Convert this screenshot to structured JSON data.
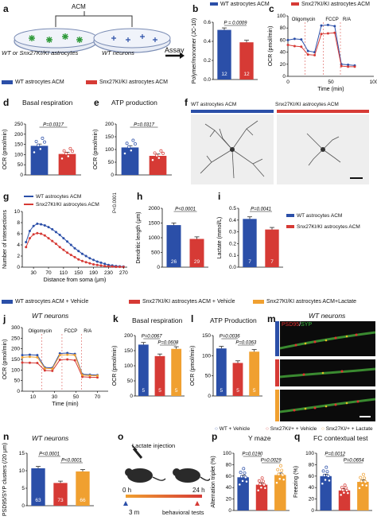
{
  "colors": {
    "blue": "#2b4fa8",
    "red": "#d63a35",
    "orange": "#f0a030",
    "green": "#2f9a3a",
    "micro_bg": "#0b0b0b",
    "gray_bg": "#ececec"
  },
  "legend": {
    "wt_acm": "WT astrocytes ACM",
    "ki_acm": "Snx27KI/KI astrocytes ACM",
    "wt_vehicle": "WT astrocytes ACM + Vehicle",
    "ki_vehicle": "Snx27KI/KI astrocytes ACM + Vehicle",
    "ki_lactate": "Snx27KI/KI astrocytes ACM+Lactate",
    "wt_veh_mice": "WT + Vehicle",
    "ki_veh_mice": "Snx27KI/+ + Vehicle",
    "ki_lac_mice": "Snx27KI/+ + Lactate"
  },
  "panels": {
    "a": {
      "letter": "a",
      "acm": "ACM",
      "left_label": "WT or Snx27KI/KI astrocytes",
      "right_label": "WT neurons",
      "assay": "Assay"
    },
    "b": {
      "letter": "b",
      "ylabel": "Polymer/monomer (JC-10)",
      "pvalue": "P = 0.0009"
    },
    "c": {
      "letter": "c",
      "ylabel": "OCR (pmol/min)",
      "xlabel": "Time (min)",
      "drugs": [
        "Oligomycin",
        "FCCP",
        "R/A"
      ]
    },
    "d": {
      "letter": "d",
      "title": "Basal respiration",
      "ylabel": "OCR (pmol/min)",
      "pvalue": "P=0.0317"
    },
    "e": {
      "letter": "e",
      "title": "ATP production",
      "ylabel": "OCR (pmol/min)",
      "pvalue": "P=0.0317"
    },
    "f": {
      "letter": "f"
    },
    "g": {
      "letter": "g",
      "ylabel": "Number of intersections",
      "xlabel": "Distance from soma (μm)",
      "pvalue": "P<0.0001"
    },
    "h": {
      "letter": "h",
      "ylabel": "Dendritic length (μm)",
      "pvalue": "P<0.0001"
    },
    "i": {
      "letter": "i",
      "ylabel": "Lactate (mmol/L)",
      "pvalue": "P=0.0041"
    },
    "j": {
      "letter": "j",
      "title": "WT neurons",
      "ylabel": "OCR (pmol/min)",
      "xlabel": "Time (min)",
      "drugs": [
        "Oligomycin",
        "FCCP",
        "R/A"
      ]
    },
    "k": {
      "letter": "k",
      "title": "Basal respiration",
      "ylabel": "OCR (pmol/min)",
      "p1": "P=0.0067",
      "p2": "P=0.0608"
    },
    "l": {
      "letter": "l",
      "title": "ATP Production",
      "ylabel": "OCR (pmol/min)",
      "p1": "P=0.0036",
      "p2": "P=0.0363"
    },
    "m": {
      "letter": "m",
      "title": "WT neurons",
      "stain1": "PSD95",
      "stain2": "SYP"
    },
    "n": {
      "letter": "n",
      "title": "WT neurons",
      "ylabel": "PSD95/SYP clusters (/20 μm)",
      "p1": "P<0.0001",
      "p2": "P<0.0001"
    },
    "o": {
      "letter": "o",
      "inject": "Lactate injection",
      "t0": "0 h",
      "t24": "24 h",
      "age": "3 m",
      "tests": "behavioral tests"
    },
    "p": {
      "letter": "p",
      "title": "Y maze",
      "ylabel": "Alternation triplet (%)",
      "p1": "P=0.0190",
      "p2": "P=0.0029"
    },
    "q": {
      "letter": "q",
      "title": "FC contextual test",
      "ylabel": "Freezing (%)",
      "p1": "P=0.0012",
      "p2": "P=0.0654"
    }
  },
  "chart_data": [
    {
      "id": "b",
      "type": "bar",
      "categories": [
        "WT astrocytes ACM",
        "Snx27KI/KI astrocytes ACM"
      ],
      "values": [
        0.52,
        0.39
      ],
      "n": [
        "12",
        "12"
      ],
      "ylim": [
        0,
        0.6
      ],
      "yticks": [
        "0.0",
        "0.2",
        "0.4",
        "0.6"
      ]
    },
    {
      "id": "c",
      "type": "line",
      "x": [
        0,
        7,
        14,
        21,
        28,
        35,
        42,
        49,
        56,
        63,
        70
      ],
      "series": [
        {
          "name": "WT astrocytes ACM",
          "values": [
            60,
            62,
            61,
            42,
            40,
            84,
            85,
            83,
            20,
            19,
            18
          ]
        },
        {
          "name": "Snx27KI/KI astrocytes ACM",
          "values": [
            52,
            50,
            49,
            36,
            35,
            70,
            71,
            72,
            17,
            16,
            16
          ]
        }
      ],
      "xlim": [
        0,
        90
      ],
      "xticks": [
        "0",
        "50",
        "100"
      ],
      "ylim": [
        0,
        100
      ],
      "yticks": [
        "0",
        "20",
        "40",
        "60",
        "80",
        "100"
      ]
    },
    {
      "id": "d",
      "type": "bar",
      "categories": [
        "WT",
        "KI/KI"
      ],
      "values": [
        143,
        103
      ],
      "ylim": [
        0,
        250
      ],
      "yticks": [
        "0",
        "50",
        "100",
        "150",
        "200",
        "250"
      ]
    },
    {
      "id": "e",
      "type": "bar",
      "categories": [
        "WT",
        "KI/KI"
      ],
      "values": [
        108,
        75
      ],
      "ylim": [
        0,
        200
      ],
      "yticks": [
        "0",
        "50",
        "100",
        "150",
        "200"
      ]
    },
    {
      "id": "g",
      "type": "line",
      "x": [
        10,
        20,
        30,
        40,
        50,
        60,
        70,
        80,
        90,
        100,
        110,
        120,
        130,
        140,
        150,
        160,
        170,
        180,
        190,
        200,
        210,
        220,
        230,
        240,
        250,
        260,
        270
      ],
      "series": [
        {
          "name": "WT astrocytes ACM",
          "values": [
            4.5,
            6.5,
            7.4,
            7.8,
            7.7,
            7.5,
            7.2,
            6.8,
            6.3,
            5.8,
            5.2,
            4.6,
            4.0,
            3.4,
            2.9,
            2.4,
            2.0,
            1.6,
            1.3,
            1.0,
            0.8,
            0.6,
            0.4,
            0.3,
            0.2,
            0.15,
            0.1
          ]
        },
        {
          "name": "Snx27KI/KI astrocytes ACM",
          "values": [
            3.6,
            5.2,
            5.9,
            6.1,
            6.0,
            5.7,
            5.2,
            4.7,
            4.2,
            3.6,
            3.1,
            2.6,
            2.2,
            1.8,
            1.4,
            1.1,
            0.9,
            0.7,
            0.5,
            0.4,
            0.3,
            0.2,
            0.15,
            0.1,
            0.05,
            0.05,
            0.03
          ]
        }
      ],
      "xticks": [
        "30",
        "70",
        "110",
        "150",
        "190",
        "230",
        "270"
      ],
      "ylim": [
        0,
        10
      ],
      "yticks": [
        "0",
        "2",
        "4",
        "6",
        "8",
        "10"
      ]
    },
    {
      "id": "h",
      "type": "bar",
      "categories": [
        "WT",
        "KI/KI"
      ],
      "values": [
        1430,
        960
      ],
      "n": [
        "26",
        "29"
      ],
      "ylim": [
        0,
        2000
      ],
      "yticks": [
        "0",
        "500",
        "1000",
        "1500",
        "2000"
      ]
    },
    {
      "id": "i",
      "type": "bar",
      "categories": [
        "WT",
        "KI/KI"
      ],
      "values": [
        0.41,
        0.32
      ],
      "n": [
        "7",
        "7"
      ],
      "ylim": [
        0,
        0.5
      ],
      "yticks": [
        "0.0",
        "0.1",
        "0.2",
        "0.3",
        "0.4",
        "0.5"
      ]
    },
    {
      "id": "j",
      "type": "line",
      "x": [
        0,
        7,
        14,
        21,
        28,
        35,
        42,
        49,
        56,
        63,
        70
      ],
      "series": [
        {
          "name": "WT + Vehicle",
          "values": [
            170,
            172,
            170,
            112,
            110,
            178,
            180,
            176,
            80,
            78,
            76
          ]
        },
        {
          "name": "KI + Vehicle",
          "values": [
            135,
            134,
            133,
            98,
            96,
            148,
            150,
            146,
            68,
            66,
            65
          ]
        },
        {
          "name": "KI + Lactate",
          "values": [
            160,
            162,
            160,
            108,
            106,
            170,
            172,
            170,
            76,
            74,
            73
          ]
        }
      ],
      "xticks": [
        "10",
        "30",
        "50",
        "70"
      ],
      "ylim": [
        0,
        300
      ],
      "yticks": [
        "0",
        "50",
        "100",
        "150",
        "200",
        "250",
        "300"
      ]
    },
    {
      "id": "k",
      "type": "bar",
      "categories": [
        "WT+Vehicle",
        "KI+Vehicle",
        "KI+Lactate"
      ],
      "values": [
        170,
        132,
        156
      ],
      "n": [
        "5",
        "5",
        "5"
      ],
      "ylim": [
        0,
        200
      ],
      "yticks": [
        "0",
        "50",
        "100",
        "150",
        "200"
      ]
    },
    {
      "id": "l",
      "type": "bar",
      "categories": [
        "WT+Vehicle",
        "KI+Vehicle",
        "KI+Lactate"
      ],
      "values": [
        118,
        82,
        110
      ],
      "n": [
        "5",
        "5",
        "5"
      ],
      "ylim": [
        0,
        150
      ],
      "yticks": [
        "0",
        "50",
        "100",
        "150"
      ]
    },
    {
      "id": "n",
      "type": "bar",
      "categories": [
        "WT+Vehicle",
        "KI+Vehicle",
        "KI+Lactate"
      ],
      "values": [
        10.7,
        6.5,
        9.8
      ],
      "n": [
        "63",
        "73",
        "66"
      ],
      "ylim": [
        0,
        15
      ],
      "yticks": [
        "0",
        "5",
        "10",
        "15"
      ]
    },
    {
      "id": "p",
      "type": "bar",
      "categories": [
        "WT+Vehicle",
        "KI+Vehicle",
        "KI+Lactate"
      ],
      "values": [
        58,
        45,
        62
      ],
      "ylim": [
        0,
        100
      ],
      "yticks": [
        "0",
        "20",
        "40",
        "60",
        "80",
        "100"
      ]
    },
    {
      "id": "q",
      "type": "bar",
      "categories": [
        "WT+Vehicle",
        "KI+Vehicle",
        "KI+Lactate"
      ],
      "values": [
        60,
        35,
        50
      ],
      "ylim": [
        0,
        100
      ],
      "yticks": [
        "0",
        "20",
        "40",
        "60",
        "80",
        "100"
      ]
    }
  ]
}
